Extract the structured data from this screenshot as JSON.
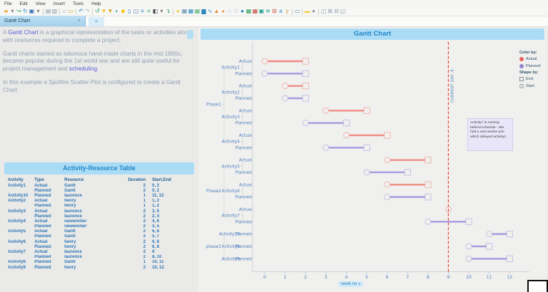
{
  "menubar": {
    "items": [
      "File",
      "Edit",
      "View",
      "Insert",
      "Tools",
      "Help"
    ]
  },
  "toolbar": {
    "icons": [
      {
        "n": "open-folder-icon",
        "g": "▰",
        "c": "#eda93b"
      },
      {
        "n": "open-dropdown-icon",
        "g": "▾",
        "c": "#777777"
      },
      {
        "n": "send-icon",
        "g": "↪",
        "c": "#36a15f"
      },
      {
        "n": "refresh-linked-icon",
        "g": "↻",
        "c": "#2e86c1"
      },
      {
        "n": "save-icon",
        "g": "▣",
        "c": "#2d6fb0"
      },
      {
        "n": "save-dropdown-icon",
        "g": "▾",
        "c": "#777777"
      },
      {
        "sep": true
      },
      {
        "n": "print-icon",
        "g": "▤",
        "c": "#8796a6"
      },
      {
        "n": "print-preview-icon",
        "g": "▥",
        "c": "#8796a6"
      },
      {
        "sep": true
      },
      {
        "n": "copy-icon",
        "g": "▱",
        "c": "#a8b2bd"
      },
      {
        "n": "paste-icon",
        "g": "▭",
        "c": "#c9a227"
      },
      {
        "sep": true
      },
      {
        "n": "undo-icon",
        "g": "↶",
        "c": "#2e86c1"
      },
      {
        "n": "redo-icon",
        "g": "↷",
        "c": "#a8b2bd"
      },
      {
        "sep": true
      },
      {
        "n": "reload-data-icon",
        "g": "↺",
        "c": "#2fa05a"
      },
      {
        "n": "filter-icon",
        "g": "▼",
        "c": "#f0c419"
      },
      {
        "n": "filter-organize-icon",
        "g": "▼",
        "c": "#cfa417"
      },
      {
        "n": "tags-icon",
        "g": "◗",
        "c": "#1b9e8f"
      },
      {
        "n": "bookmark-icon",
        "g": "◆",
        "c": "#f0c419"
      },
      {
        "n": "details-icon",
        "g": "▯",
        "c": "#3a84c4"
      },
      {
        "n": "collaboration-icon",
        "g": "◫",
        "c": "#6d87a8"
      },
      {
        "n": "filters-panel-icon",
        "g": "≡",
        "c": "#2e86c1"
      },
      {
        "n": "data-panel-icon",
        "g": "≡",
        "c": "#2fa05a"
      },
      {
        "n": "display-icon",
        "g": "◧",
        "c": "#444444"
      },
      {
        "n": "display-dropdown-icon",
        "g": "▾",
        "c": "#777777"
      },
      {
        "n": "export-icon",
        "g": "↴",
        "c": "#2fa05a"
      },
      {
        "sep": true
      },
      {
        "n": "recommendations-icon",
        "g": "●",
        "c": "#f2cf3a"
      },
      {
        "n": "table-icon",
        "g": "▦",
        "c": "#5d86ad"
      },
      {
        "n": "cross-table-icon",
        "g": "▦",
        "c": "#2e86c1"
      },
      {
        "n": "graphical-table-icon",
        "g": "▦",
        "c": "#56b06c"
      },
      {
        "n": "bar-chart-icon",
        "g": "▆",
        "c": "#2e86c1"
      },
      {
        "n": "line-chart-icon",
        "g": "∿",
        "c": "#2e86c1"
      },
      {
        "n": "combination-chart-icon",
        "g": "▲",
        "c": "#e08a2e"
      },
      {
        "n": "pie-chart-icon",
        "g": "◕",
        "c": "#e08a2e"
      },
      {
        "n": "scatter-plot-icon",
        "g": "∴",
        "c": "#2e86c1"
      },
      {
        "n": "scatter-3d-icon",
        "g": "∷",
        "c": "#7a6bb5"
      },
      {
        "n": "map-chart-icon",
        "g": "●",
        "c": "#2d80b8"
      },
      {
        "n": "treemap-icon",
        "g": "▦",
        "c": "#2fa05a"
      },
      {
        "n": "heat-map-icon",
        "g": "▦",
        "c": "#c24737"
      },
      {
        "n": "kpi-chart-icon",
        "g": "▣",
        "c": "#1b9e8f"
      },
      {
        "n": "parallel-coordinate-icon",
        "g": "≋",
        "c": "#1b9e8f"
      },
      {
        "n": "box-plot-icon",
        "g": "⊟",
        "c": "#c24737"
      },
      {
        "n": "text-area-icon",
        "g": "a",
        "c": "#2e86c1"
      },
      {
        "n": "js-visual-icon",
        "g": "y",
        "c": "#c9a227"
      },
      {
        "sep": true
      },
      {
        "n": "web-player-icon",
        "g": "▭",
        "c": "#5d86ad"
      },
      {
        "sep": true
      },
      {
        "n": "notes-icon",
        "g": "▬",
        "c": "#f2cf3a"
      },
      {
        "n": "web-icon",
        "g": "●",
        "c": "#8796a6"
      },
      {
        "sep": true
      },
      {
        "n": "layout-side-by-side-icon",
        "g": "◫",
        "c": "#90a0ae"
      },
      {
        "n": "layout-grid-icon",
        "g": "⊞",
        "c": "#90a0ae"
      },
      {
        "n": "layout-stacked-icon",
        "g": "⊟",
        "c": "#90a0ae"
      },
      {
        "n": "layout-custom-icon",
        "g": "◱",
        "c": "#90a0ae"
      }
    ]
  },
  "tabbar": {
    "active_tab": "Gantt Chart",
    "close_label": "×",
    "new_tab_label": "+"
  },
  "intro_panel": {
    "paragraphs": [
      {
        "segments": [
          {
            "text": "A "
          },
          {
            "text": "Gantt Chart",
            "link": true
          },
          {
            "text": " is a graphical representation of the tasks or activities along with resources required to complete a project."
          }
        ]
      },
      {
        "segments": [
          {
            "text": "Gantt charts started as laborious hand-made charts in the mid 1890s, became popular during the 1st world war and are still quite useful for project management and "
          },
          {
            "text": "scheduling",
            "link": true
          },
          {
            "text": "."
          }
        ]
      },
      {
        "segments": [
          {
            "text": "In this example a Spotfire Scatter Plot is configured  to create a  Gantt Chart"
          }
        ]
      }
    ]
  },
  "table": {
    "title": "Activity-Resource Table",
    "columns": [
      "Activity",
      "Type",
      "Resource",
      "Duration",
      "Start,End"
    ],
    "rows": [
      [
        "Activity1",
        "Actual",
        "Gantt",
        "2",
        "0, 2"
      ],
      [
        "",
        "Planned",
        "Gantt",
        "2",
        "0, 2"
      ],
      [
        "Activity10",
        "Planned",
        "laurence",
        "1",
        "11, 12"
      ],
      [
        "Activity2",
        "Actual",
        "henry",
        "1",
        "1, 2"
      ],
      [
        "",
        "Planned",
        "henry",
        "1",
        "1, 2"
      ],
      [
        "Activity3",
        "Actual",
        "laurence",
        "2",
        "3, 5"
      ],
      [
        "",
        "Planned",
        "laurence",
        "2",
        "2, 4"
      ],
      [
        "Activity4",
        "Actual",
        "newworker",
        "2",
        "4, 6"
      ],
      [
        "",
        "Planned",
        "newworker",
        "2",
        "3, 5"
      ],
      [
        "Activity5",
        "Actual",
        "Gantt",
        "2",
        "6, 8"
      ],
      [
        "",
        "Planned",
        "Gantt",
        "2",
        "5, 7"
      ],
      [
        "Activity6",
        "Actual",
        "henry",
        "2",
        "6, 8"
      ],
      [
        "",
        "Planned",
        "henry",
        "2",
        "6, 8"
      ],
      [
        "Activity7",
        "Actual",
        "laurence",
        "2",
        "9"
      ],
      [
        "",
        "Planned",
        "laurence",
        "2",
        "8, 10"
      ],
      [
        "Activity8",
        "Planned",
        "Gantt",
        "1",
        "10, 11"
      ],
      [
        "Activity9",
        "Planned",
        "henry",
        "2",
        "10, 12"
      ]
    ]
  },
  "chart_data": {
    "type": "scatter",
    "title": "Gantt Chart",
    "xlabel": "week no",
    "xlabel_dropdown": "▾",
    "x_ticks": [
      0,
      1,
      2,
      3,
      4,
      5,
      6,
      7,
      8,
      9,
      10,
      11,
      12
    ],
    "xlim": [
      -0.3,
      12.6
    ],
    "grid": false,
    "legend_position": "right",
    "current_day": {
      "value": 9,
      "label": "CURRENT DAY: 9"
    },
    "colors": {
      "actual": "#ef8b85",
      "planned": "#a79bde",
      "current_line": "#e84c3d",
      "axis_text": "#4d7ebf",
      "legend_actual": "#e8625a",
      "legend_planned": "#9384cf"
    },
    "legend": {
      "color_by": "Color by:",
      "color_items": [
        {
          "label": "Actual",
          "swatch": "circle",
          "color": "#e8625a"
        },
        {
          "label": "Planned",
          "swatch": "circle",
          "color": "#9384cf"
        }
      ],
      "shape_by": "Shape by:",
      "shape_items": [
        {
          "label": "End",
          "swatch": "square"
        },
        {
          "label": "Start",
          "swatch": "circle"
        }
      ]
    },
    "phases": [
      {
        "name": "Phase1",
        "activities": [
          {
            "name": "Activity1",
            "rows": [
              {
                "type": "Actual",
                "start": 0,
                "end": 2
              },
              {
                "type": "Planned",
                "start": 0,
                "end": 2
              }
            ]
          },
          {
            "name": "Activity2",
            "rows": [
              {
                "type": "Actual",
                "start": 1,
                "end": 2
              },
              {
                "type": "Planned",
                "start": 1,
                "end": 2
              }
            ]
          },
          {
            "name": "Activity3",
            "rows": [
              {
                "type": "Actual",
                "start": 3,
                "end": 5
              },
              {
                "type": "Planned",
                "start": 2,
                "end": 4
              }
            ]
          },
          {
            "name": "Activity4",
            "rows": [
              {
                "type": "Actual",
                "start": 4,
                "end": 6
              },
              {
                "type": "Planned",
                "start": 3,
                "end": 5
              }
            ]
          }
        ]
      },
      {
        "name": "Phase2",
        "activities": [
          {
            "name": "Activity5",
            "rows": [
              {
                "type": "Actual",
                "start": 6,
                "end": 8
              },
              {
                "type": "Planned",
                "start": 5,
                "end": 7
              }
            ]
          },
          {
            "name": "Activity6",
            "rows": [
              {
                "type": "Actual",
                "start": 6,
                "end": 8
              },
              {
                "type": "Planned",
                "start": 6,
                "end": 8
              }
            ]
          },
          {
            "name": "Activity7",
            "rows": [
              {
                "type": "Actual",
                "start": 9,
                "end": null
              },
              {
                "type": "Planned",
                "start": 8,
                "end": 10
              }
            ]
          }
        ]
      },
      {
        "name": "phase3",
        "activities": [
          {
            "name": "Activity10",
            "rows": [
              {
                "type": "Planned",
                "start": 11,
                "end": 12
              }
            ]
          },
          {
            "name": "Activity8",
            "rows": [
              {
                "type": "Planned",
                "start": 10,
                "end": 11
              }
            ]
          },
          {
            "name": "Activity9",
            "rows": [
              {
                "type": "Planned",
                "start": 10,
                "end": 12
              }
            ]
          }
        ]
      }
    ],
    "annotation": "Activity7 is running behind schedule - We had a new worker join which delayed activity4"
  }
}
